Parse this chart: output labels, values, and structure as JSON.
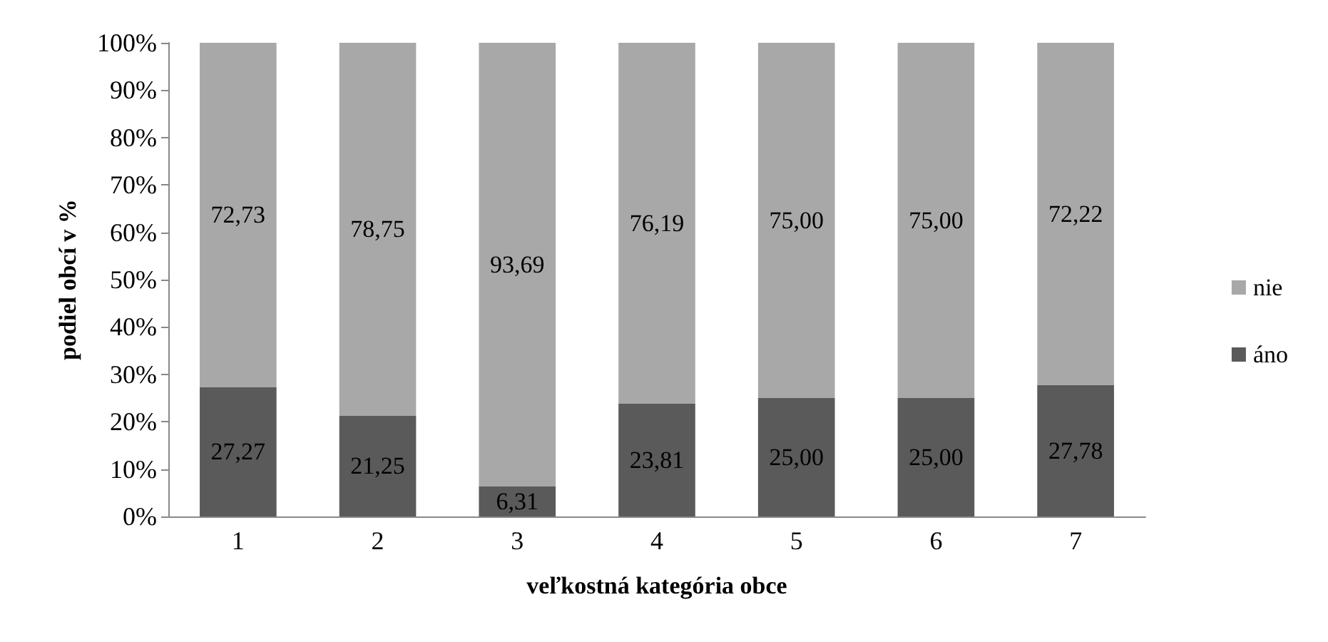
{
  "chart_data": {
    "type": "bar",
    "stacked": true,
    "xlabel": "veľkostná kategória obce",
    "ylabel": "podiel obcí v %",
    "categories": [
      "1",
      "2",
      "3",
      "4",
      "5",
      "6",
      "7"
    ],
    "series": [
      {
        "name": "áno",
        "color": "#5a5a5a",
        "values": [
          27.27,
          21.25,
          6.31,
          23.81,
          25.0,
          25.0,
          27.78
        ],
        "value_labels": [
          "27,27",
          "21,25",
          "6,31",
          "23,81",
          "25,00",
          "25,00",
          "27,78"
        ]
      },
      {
        "name": "nie",
        "color": "#a8a8a8",
        "values": [
          72.73,
          78.75,
          93.69,
          76.19,
          75.0,
          75.0,
          72.22
        ],
        "value_labels": [
          "72,73",
          "78,75",
          "93,69",
          "76,19",
          "75,00",
          "75,00",
          "72,22"
        ]
      }
    ],
    "ylim": [
      0,
      100
    ],
    "yticks": [
      {
        "value": 0,
        "label": "0%"
      },
      {
        "value": 10,
        "label": "10%"
      },
      {
        "value": 20,
        "label": "20%"
      },
      {
        "value": 30,
        "label": "30%"
      },
      {
        "value": 40,
        "label": "40%"
      },
      {
        "value": 50,
        "label": "50%"
      },
      {
        "value": 60,
        "label": "60%"
      },
      {
        "value": 70,
        "label": "70%"
      },
      {
        "value": 80,
        "label": "80%"
      },
      {
        "value": 90,
        "label": "90%"
      },
      {
        "value": 100,
        "label": "100%"
      }
    ],
    "grid": false,
    "legend": "right"
  }
}
